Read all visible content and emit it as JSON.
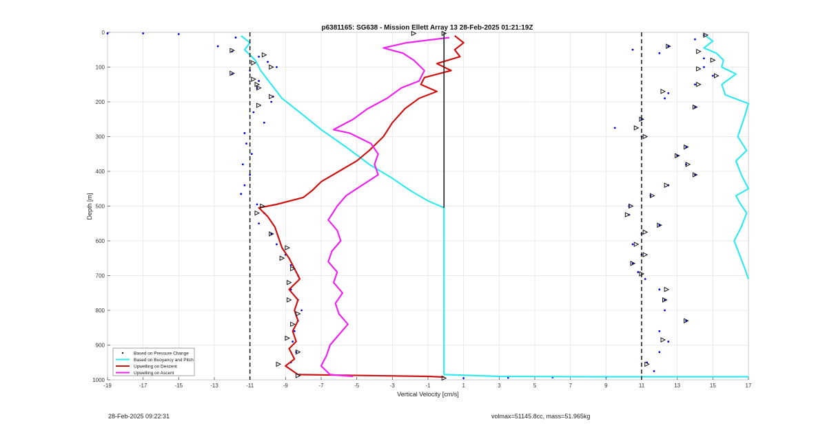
{
  "chart_data": {
    "type": "line",
    "title": "p6381165: SG638 - Mission Ellett Array 13 28-Feb-2025 01:21:19Z",
    "xlabel": "Vertical Velocity [cm/s]",
    "ylabel": "Depth [m]",
    "xlim": [
      -19,
      17
    ],
    "ylim": [
      0,
      1000
    ],
    "y_reversed": true,
    "grid": true,
    "xticks": [
      -19,
      -17,
      -15,
      -13,
      -11,
      -9,
      -7,
      -5,
      -3,
      -1,
      1,
      3,
      5,
      7,
      9,
      11,
      13,
      15,
      17
    ],
    "yticks": [
      0,
      100,
      200,
      300,
      400,
      500,
      600,
      700,
      800,
      900,
      1000
    ],
    "legend_position": "bottom-left",
    "reference_lines": {
      "dashed_x": [
        -11,
        11
      ],
      "solid_x": [
        -0.1
      ]
    },
    "series": [
      {
        "name": "Based on Pressure Change",
        "style": "dots",
        "color": "#0000cc",
        "points": [
          [
            -19,
            3
          ],
          [
            -17,
            3
          ],
          [
            -15,
            5
          ],
          [
            -11.8,
            15
          ],
          [
            -12.8,
            40
          ],
          [
            -12,
            55
          ],
          [
            -10.5,
            70
          ],
          [
            -10,
            85
          ],
          [
            -9.5,
            100
          ],
          [
            -11,
            110
          ],
          [
            -12,
            120
          ],
          [
            -10.5,
            140
          ],
          [
            -10.6,
            160
          ],
          [
            -9.7,
            185
          ],
          [
            -9.8,
            200
          ],
          [
            -10.8,
            230
          ],
          [
            -10.2,
            260
          ],
          [
            -11.3,
            290
          ],
          [
            -11.2,
            320
          ],
          [
            -10.9,
            350
          ],
          [
            -11.4,
            380
          ],
          [
            -11,
            410
          ],
          [
            -11.3,
            440
          ],
          [
            -11.5,
            465
          ],
          [
            -10.6,
            495
          ],
          [
            -10.2,
            520
          ],
          [
            -10.5,
            550
          ],
          [
            -9.8,
            580
          ],
          [
            -9.5,
            610
          ],
          [
            -9,
            640
          ],
          [
            -8.7,
            670
          ],
          [
            -8.3,
            700
          ],
          [
            -8.7,
            740
          ],
          [
            -8.3,
            770
          ],
          [
            -8.1,
            800
          ],
          [
            -8.3,
            830
          ],
          [
            -8.5,
            860
          ],
          [
            -8.6,
            890
          ],
          [
            -8.4,
            920
          ],
          [
            -8.7,
            950
          ],
          [
            -8.2,
            985
          ],
          [
            1,
            995
          ],
          [
            3.5,
            994
          ],
          [
            6,
            993
          ],
          [
            9,
            992
          ],
          [
            11,
            991
          ],
          [
            14.5,
            8
          ],
          [
            14,
            20
          ],
          [
            12.5,
            40
          ],
          [
            10.5,
            50
          ],
          [
            12,
            60
          ],
          [
            14.5,
            75
          ],
          [
            14.5,
            100
          ],
          [
            15,
            125
          ],
          [
            14,
            150
          ],
          [
            12.5,
            175
          ],
          [
            12.3,
            190
          ],
          [
            14,
            215
          ],
          [
            11,
            250
          ],
          [
            9.5,
            275
          ],
          [
            11,
            300
          ],
          [
            13.5,
            330
          ],
          [
            13,
            355
          ],
          [
            13.5,
            380
          ],
          [
            14,
            410
          ],
          [
            12.5,
            440
          ],
          [
            11.5,
            470
          ],
          [
            10.3,
            500
          ],
          [
            10.3,
            525
          ],
          [
            12,
            555
          ],
          [
            11,
            580
          ],
          [
            10.5,
            610
          ],
          [
            11,
            640
          ],
          [
            10.5,
            665
          ],
          [
            10.8,
            690
          ],
          [
            11.2,
            710
          ],
          [
            12,
            740
          ],
          [
            12.3,
            770
          ],
          [
            12.3,
            800
          ],
          [
            13.5,
            830
          ],
          [
            12,
            860
          ],
          [
            12.5,
            890
          ],
          [
            12,
            920
          ],
          [
            11.3,
            950
          ],
          [
            11.7,
            975
          ]
        ]
      },
      {
        "name": "Based on Buoyancy and Pitch",
        "style": "line",
        "color": "#33e8ee",
        "points": [
          [
            -11.5,
            10
          ],
          [
            -11,
            30
          ],
          [
            -11.3,
            50
          ],
          [
            -10.7,
            80
          ],
          [
            -10.4,
            110
          ],
          [
            -9.8,
            150
          ],
          [
            -9.2,
            190
          ],
          [
            -8.2,
            230
          ],
          [
            -7,
            280
          ],
          [
            -5.6,
            330
          ],
          [
            -4.3,
            380
          ],
          [
            -3,
            420
          ],
          [
            -2,
            455
          ],
          [
            -1,
            485
          ],
          [
            -0.1,
            505
          ],
          [
            -0.1,
            600
          ],
          [
            -0.1,
            700
          ],
          [
            -0.1,
            800
          ],
          [
            -0.1,
            900
          ],
          [
            -0.1,
            985
          ],
          [
            3,
            990
          ],
          [
            8,
            991
          ],
          [
            13,
            991
          ],
          [
            17,
            991
          ]
        ]
      },
      {
        "name": "Buoyancy and Pitch (ascent)",
        "style": "line",
        "color": "#33e8ee",
        "legend": false,
        "points": [
          [
            17,
            710
          ],
          [
            16.8,
            680
          ],
          [
            16.5,
            640
          ],
          [
            16.2,
            600
          ],
          [
            16.6,
            560
          ],
          [
            16.9,
            520
          ],
          [
            16.5,
            490
          ],
          [
            16.3,
            470
          ],
          [
            17,
            450
          ],
          [
            16.6,
            410
          ],
          [
            16.3,
            370
          ],
          [
            16.9,
            340
          ],
          [
            16.4,
            300
          ],
          [
            16.6,
            270
          ],
          [
            16.8,
            240
          ],
          [
            17,
            205
          ],
          [
            15.7,
            180
          ],
          [
            15.5,
            150
          ],
          [
            16.3,
            120
          ],
          [
            15.5,
            100
          ],
          [
            15.6,
            80
          ],
          [
            15.2,
            60
          ],
          [
            14.5,
            45
          ],
          [
            15,
            25
          ],
          [
            14.6,
            10
          ]
        ]
      },
      {
        "name": "Upwelling on Descent",
        "style": "line",
        "color": "#cc1111",
        "points": [
          [
            0.5,
            10
          ],
          [
            1,
            30
          ],
          [
            0.5,
            50
          ],
          [
            0.8,
            70
          ],
          [
            -0.5,
            90
          ],
          [
            0.3,
            110
          ],
          [
            -1.2,
            130
          ],
          [
            -1.4,
            150
          ],
          [
            -0.5,
            170
          ],
          [
            -1.5,
            190
          ],
          [
            -2.3,
            220
          ],
          [
            -3,
            260
          ],
          [
            -3.5,
            300
          ],
          [
            -4.3,
            340
          ],
          [
            -5,
            370
          ],
          [
            -6,
            400
          ],
          [
            -7,
            430
          ],
          [
            -7.5,
            455
          ],
          [
            -8,
            475
          ],
          [
            -9.5,
            495
          ],
          [
            -10.5,
            505
          ],
          [
            -10,
            530
          ],
          [
            -9.6,
            560
          ],
          [
            -9.4,
            590
          ],
          [
            -9.2,
            620
          ],
          [
            -8.8,
            650
          ],
          [
            -8.5,
            680
          ],
          [
            -8.2,
            710
          ],
          [
            -8.8,
            740
          ],
          [
            -8.3,
            770
          ],
          [
            -8.5,
            800
          ],
          [
            -8.3,
            830
          ],
          [
            -8.6,
            860
          ],
          [
            -8.4,
            890
          ],
          [
            -8.8,
            910
          ],
          [
            -8.5,
            940
          ],
          [
            -9,
            960
          ],
          [
            -8.3,
            985
          ],
          [
            -1,
            990
          ],
          [
            -0.1,
            992
          ]
        ]
      },
      {
        "name": "Upwelling on Ascent",
        "style": "line",
        "color": "#ee22ee",
        "points": [
          [
            -5.2,
            990
          ],
          [
            -6.5,
            985
          ],
          [
            -7,
            960
          ],
          [
            -6.7,
            930
          ],
          [
            -6.5,
            900
          ],
          [
            -6,
            870
          ],
          [
            -5.5,
            840
          ],
          [
            -6,
            810
          ],
          [
            -6.2,
            780
          ],
          [
            -5.8,
            750
          ],
          [
            -6.3,
            720
          ],
          [
            -6.1,
            690
          ],
          [
            -6.6,
            660
          ],
          [
            -6.4,
            630
          ],
          [
            -5.9,
            600
          ],
          [
            -6.1,
            570
          ],
          [
            -6.6,
            540
          ],
          [
            -6.1,
            500
          ],
          [
            -5.6,
            470
          ],
          [
            -4.7,
            440
          ],
          [
            -3.8,
            410
          ],
          [
            -4,
            380
          ],
          [
            -3.8,
            350
          ],
          [
            -4.2,
            320
          ],
          [
            -5.4,
            290
          ],
          [
            -6.3,
            280
          ],
          [
            -5.2,
            250
          ],
          [
            -4.4,
            220
          ],
          [
            -3.3,
            190
          ],
          [
            -2.5,
            160
          ],
          [
            -1.5,
            140
          ],
          [
            -1.2,
            110
          ],
          [
            -1.8,
            80
          ],
          [
            -2.4,
            60
          ],
          [
            -3.5,
            45
          ],
          [
            -2.2,
            30
          ],
          [
            0.2,
            15
          ]
        ]
      }
    ],
    "markers": {
      "style": "open-triangle",
      "color": "#111111",
      "points": [
        [
          -1.8,
          3
        ],
        [
          -0.1,
          3
        ],
        [
          14.6,
          8
        ],
        [
          -12,
          52
        ],
        [
          -10.2,
          65
        ],
        [
          -10.8,
          88
        ],
        [
          -9.8,
          100
        ],
        [
          -12,
          118
        ],
        [
          -10.8,
          135
        ],
        [
          -10.6,
          150
        ],
        [
          -10.5,
          160
        ],
        [
          -9.8,
          185
        ],
        [
          -10.5,
          210
        ],
        [
          12.5,
          40
        ],
        [
          14.2,
          55
        ],
        [
          15,
          80
        ],
        [
          14.2,
          105
        ],
        [
          15.2,
          125
        ],
        [
          14.2,
          150
        ],
        [
          12.2,
          170
        ],
        [
          14,
          215
        ],
        [
          11,
          250
        ],
        [
          10.7,
          275
        ],
        [
          11.2,
          300
        ],
        [
          13.5,
          330
        ],
        [
          13,
          355
        ],
        [
          13.6,
          380
        ],
        [
          14,
          410
        ],
        [
          12.4,
          440
        ],
        [
          11.6,
          470
        ],
        [
          10.4,
          500
        ],
        [
          10.2,
          525
        ],
        [
          12,
          555
        ],
        [
          11.2,
          575
        ],
        [
          10.7,
          610
        ],
        [
          11.2,
          640
        ],
        [
          10.5,
          665
        ],
        [
          11,
          695
        ],
        [
          12.4,
          740
        ],
        [
          12.3,
          770
        ],
        [
          13.5,
          830
        ],
        [
          12.2,
          885
        ],
        [
          11.3,
          955
        ],
        [
          -9.8,
          580
        ],
        [
          -8.9,
          620
        ],
        [
          -9.2,
          650
        ],
        [
          -8.6,
          680
        ],
        [
          -8.8,
          720
        ],
        [
          -8.8,
          770
        ],
        [
          -8.3,
          810
        ],
        [
          -8.6,
          840
        ],
        [
          -8.9,
          880
        ],
        [
          -8.3,
          920
        ],
        [
          -9.4,
          955
        ],
        [
          -8.3,
          988
        ],
        [
          -10.6,
          520
        ],
        [
          -10.3,
          500
        ],
        [
          -0.1,
          995
        ]
      ]
    },
    "legend_entries": [
      "Based on Pressure Change",
      "Based on Buoyancy and Pitch",
      "Upwelling on Descent",
      "Upwelling on Ascent"
    ]
  },
  "footer": {
    "timestamp": "28-Feb-2025 09:22:31",
    "stats": "volmax=51145.8cc, mass=51.965kg"
  }
}
